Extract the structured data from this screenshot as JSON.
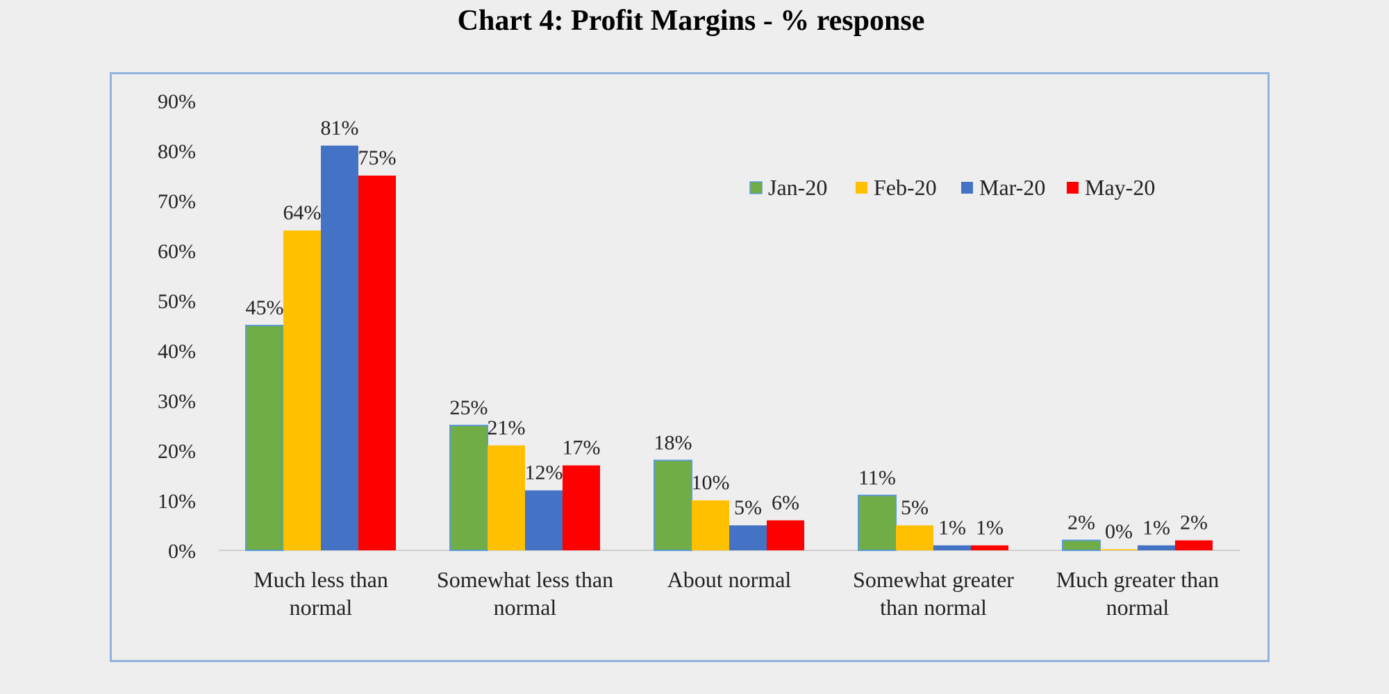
{
  "chart_data": {
    "type": "bar",
    "title": "Chart 4: Profit Margins - % response",
    "xlabel": "",
    "ylabel": "",
    "ylim": [
      0,
      90
    ],
    "y_ticks": [
      "0%",
      "10%",
      "20%",
      "30%",
      "40%",
      "50%",
      "60%",
      "70%",
      "80%",
      "90%"
    ],
    "categories": [
      [
        "Much less than",
        "normal"
      ],
      [
        "Somewhat less than",
        "normal"
      ],
      [
        "About normal"
      ],
      [
        "Somewhat greater",
        "than normal"
      ],
      [
        "Much greater than",
        "normal"
      ]
    ],
    "series": [
      {
        "name": "Jan-20",
        "color": "#70ad47",
        "values": [
          45,
          25,
          18,
          11,
          2
        ],
        "labels": [
          "45%",
          "25%",
          "18%",
          "11%",
          "2%"
        ]
      },
      {
        "name": "Feb-20",
        "color": "#ffc000",
        "values": [
          64,
          21,
          10,
          5,
          0
        ],
        "labels": [
          "64%",
          "21%",
          "10%",
          "5%",
          "0%"
        ]
      },
      {
        "name": "Mar-20",
        "color": "#4472c4",
        "values": [
          81,
          12,
          5,
          1,
          1
        ],
        "labels": [
          "81%",
          "12%",
          "5%",
          "1%",
          "1%"
        ]
      },
      {
        "name": "May-20",
        "color": "#ff0000",
        "values": [
          75,
          17,
          6,
          1,
          2
        ],
        "labels": [
          "75%",
          "17%",
          "6%",
          "1%",
          "2%"
        ]
      }
    ],
    "legend_position": "top-right",
    "grid": false
  }
}
